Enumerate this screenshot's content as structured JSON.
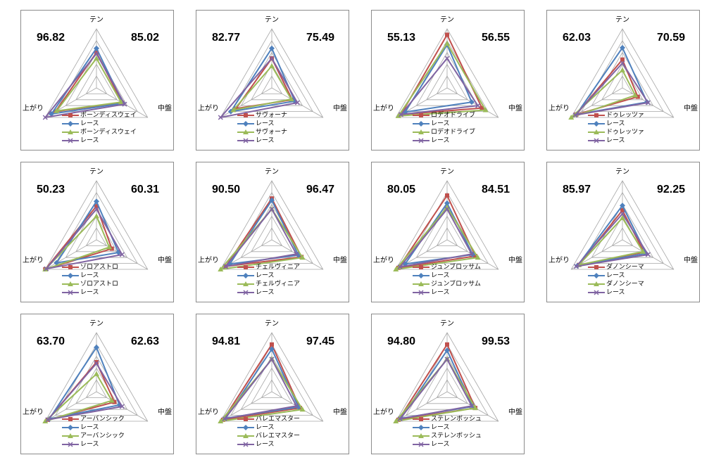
{
  "axis_labels": {
    "top": "テン",
    "right": "中盤",
    "left": "上がり"
  },
  "colors": {
    "red": "#c0504d",
    "blue": "#4f81bd",
    "green": "#9bbb59",
    "purple": "#8064a2",
    "grid": "#a6a6a6"
  },
  "chart_data": [
    {
      "type": "radar",
      "axes": [
        "テン",
        "中盤",
        "上がり"
      ],
      "value_left": "96.82",
      "value_right": "85.02",
      "series": [
        {
          "name": "ボーンディスウェイ",
          "marker": "square",
          "color": "#c0504d",
          "values": [
            60,
            50,
            80
          ]
        },
        {
          "name": "レース",
          "marker": "diamond",
          "color": "#4f81bd",
          "values": [
            67,
            52,
            88
          ]
        },
        {
          "name": "ボーンディスウェイ",
          "marker": "triangle",
          "color": "#9bbb59",
          "values": [
            50,
            48,
            78
          ]
        },
        {
          "name": "レース",
          "marker": "x",
          "color": "#8064a2",
          "values": [
            58,
            55,
            100
          ]
        }
      ]
    },
    {
      "type": "radar",
      "axes": [
        "テン",
        "中盤",
        "上がり"
      ],
      "value_left": "82.77",
      "value_right": "75.49",
      "series": [
        {
          "name": "サヴォーナ",
          "marker": "square",
          "color": "#c0504d",
          "values": [
            50,
            40,
            70
          ]
        },
        {
          "name": "レース",
          "marker": "diamond",
          "color": "#4f81bd",
          "values": [
            67,
            45,
            80
          ]
        },
        {
          "name": "サヴォーナ",
          "marker": "triangle",
          "color": "#9bbb59",
          "values": [
            37,
            38,
            75
          ]
        },
        {
          "name": "レース",
          "marker": "x",
          "color": "#8064a2",
          "values": [
            50,
            50,
            100
          ]
        }
      ]
    },
    {
      "type": "radar",
      "axes": [
        "テン",
        "中盤",
        "上がり"
      ],
      "value_left": "55.13",
      "value_right": "56.55",
      "series": [
        {
          "name": "ロデオドライブ",
          "marker": "square",
          "color": "#c0504d",
          "values": [
            90,
            68,
            90
          ]
        },
        {
          "name": "レース",
          "marker": "diamond",
          "color": "#4f81bd",
          "values": [
            73,
            48,
            82
          ]
        },
        {
          "name": "ロデオドライブ",
          "marker": "triangle",
          "color": "#9bbb59",
          "values": [
            75,
            75,
            95
          ]
        },
        {
          "name": "レース",
          "marker": "x",
          "color": "#8064a2",
          "values": [
            50,
            60,
            90
          ]
        }
      ]
    },
    {
      "type": "radar",
      "axes": [
        "テン",
        "中盤",
        "上がり"
      ],
      "value_left": "62.03",
      "value_right": "70.59",
      "series": [
        {
          "name": "ドゥレッツァ",
          "marker": "square",
          "color": "#c0504d",
          "values": [
            48,
            30,
            90
          ]
        },
        {
          "name": "レース",
          "marker": "diamond",
          "color": "#4f81bd",
          "values": [
            68,
            48,
            90
          ]
        },
        {
          "name": "ドゥレッツァ",
          "marker": "triangle",
          "color": "#9bbb59",
          "values": [
            30,
            25,
            100
          ]
        },
        {
          "name": "レース",
          "marker": "x",
          "color": "#8064a2",
          "values": [
            42,
            50,
            92
          ]
        }
      ]
    },
    {
      "type": "radar",
      "axes": [
        "テン",
        "中盤",
        "上がり"
      ],
      "value_left": "50.23",
      "value_right": "60.31",
      "series": [
        {
          "name": "ゾロアストロ",
          "marker": "square",
          "color": "#c0504d",
          "values": [
            57,
            30,
            100
          ]
        },
        {
          "name": "レース",
          "marker": "diamond",
          "color": "#4f81bd",
          "values": [
            65,
            43,
            78
          ]
        },
        {
          "name": "ゾロアストロ",
          "marker": "triangle",
          "color": "#9bbb59",
          "values": [
            40,
            25,
            100
          ]
        },
        {
          "name": "レース",
          "marker": "x",
          "color": "#8064a2",
          "values": [
            52,
            50,
            98
          ]
        }
      ]
    },
    {
      "type": "radar",
      "axes": [
        "テン",
        "中盤",
        "上がり"
      ],
      "value_left": "90.50",
      "value_right": "96.47",
      "series": [
        {
          "name": "チェルヴィニア",
          "marker": "square",
          "color": "#c0504d",
          "values": [
            70,
            58,
            90
          ]
        },
        {
          "name": "レース",
          "marker": "diamond",
          "color": "#4f81bd",
          "values": [
            67,
            52,
            82
          ]
        },
        {
          "name": "チェルヴィニア",
          "marker": "triangle",
          "color": "#9bbb59",
          "values": [
            52,
            60,
            100
          ]
        },
        {
          "name": "レース",
          "marker": "x",
          "color": "#8064a2",
          "values": [
            52,
            48,
            90
          ]
        }
      ]
    },
    {
      "type": "radar",
      "axes": [
        "テン",
        "中盤",
        "上がり"
      ],
      "value_left": "80.05",
      "value_right": "84.51",
      "series": [
        {
          "name": "ジュンブロッサム",
          "marker": "square",
          "color": "#c0504d",
          "values": [
            75,
            55,
            95
          ]
        },
        {
          "name": "レース",
          "marker": "diamond",
          "color": "#4f81bd",
          "values": [
            62,
            50,
            82
          ]
        },
        {
          "name": "ジュンブロッサム",
          "marker": "triangle",
          "color": "#9bbb59",
          "values": [
            55,
            60,
            100
          ]
        },
        {
          "name": "レース",
          "marker": "x",
          "color": "#8064a2",
          "values": [
            52,
            48,
            92
          ]
        }
      ]
    },
    {
      "type": "radar",
      "axes": [
        "テン",
        "中盤",
        "上がり"
      ],
      "value_left": "85.97",
      "value_right": "92.25",
      "series": [
        {
          "name": "ダノンシーマ",
          "marker": "square",
          "color": "#c0504d",
          "values": [
            50,
            42,
            85
          ]
        },
        {
          "name": "レース",
          "marker": "diamond",
          "color": "#4f81bd",
          "values": [
            58,
            46,
            88
          ]
        },
        {
          "name": "ダノンシーマ",
          "marker": "triangle",
          "color": "#9bbb59",
          "values": [
            37,
            40,
            85
          ]
        },
        {
          "name": "レース",
          "marker": "x",
          "color": "#8064a2",
          "values": [
            44,
            50,
            90
          ]
        }
      ]
    },
    {
      "type": "radar",
      "axes": [
        "テン",
        "中盤",
        "上がり"
      ],
      "value_left": "63.70",
      "value_right": "62.63",
      "series": [
        {
          "name": "アーバンシック",
          "marker": "square",
          "color": "#c0504d",
          "values": [
            50,
            35,
            95
          ]
        },
        {
          "name": "レース",
          "marker": "diamond",
          "color": "#4f81bd",
          "values": [
            75,
            45,
            92
          ]
        },
        {
          "name": "アーバンシック",
          "marker": "triangle",
          "color": "#9bbb59",
          "values": [
            30,
            30,
            100
          ]
        },
        {
          "name": "レース",
          "marker": "x",
          "color": "#8064a2",
          "values": [
            48,
            50,
            95
          ]
        }
      ]
    },
    {
      "type": "radar",
      "axes": [
        "テン",
        "中盤",
        "上がり"
      ],
      "value_left": "94.81",
      "value_right": "97.45",
      "series": [
        {
          "name": "バレエマスター",
          "marker": "square",
          "color": "#c0504d",
          "values": [
            80,
            55,
            95
          ]
        },
        {
          "name": "レース",
          "marker": "diamond",
          "color": "#4f81bd",
          "values": [
            72,
            52,
            90
          ]
        },
        {
          "name": "バレエマスター",
          "marker": "triangle",
          "color": "#9bbb59",
          "values": [
            55,
            60,
            100
          ]
        },
        {
          "name": "レース",
          "marker": "x",
          "color": "#8064a2",
          "values": [
            55,
            48,
            92
          ]
        }
      ]
    },
    {
      "type": "radar",
      "axes": [
        "テン",
        "中盤",
        "上がり"
      ],
      "value_left": "94.80",
      "value_right": "99.53",
      "series": [
        {
          "name": "ステレンボッシュ",
          "marker": "square",
          "color": "#c0504d",
          "values": [
            80,
            55,
            95
          ]
        },
        {
          "name": "レース",
          "marker": "diamond",
          "color": "#4f81bd",
          "values": [
            70,
            50,
            90
          ]
        },
        {
          "name": "ステレンボッシュ",
          "marker": "triangle",
          "color": "#9bbb59",
          "values": [
            55,
            55,
            100
          ]
        },
        {
          "name": "レース",
          "marker": "x",
          "color": "#8064a2",
          "values": [
            55,
            48,
            92
          ]
        }
      ]
    }
  ]
}
